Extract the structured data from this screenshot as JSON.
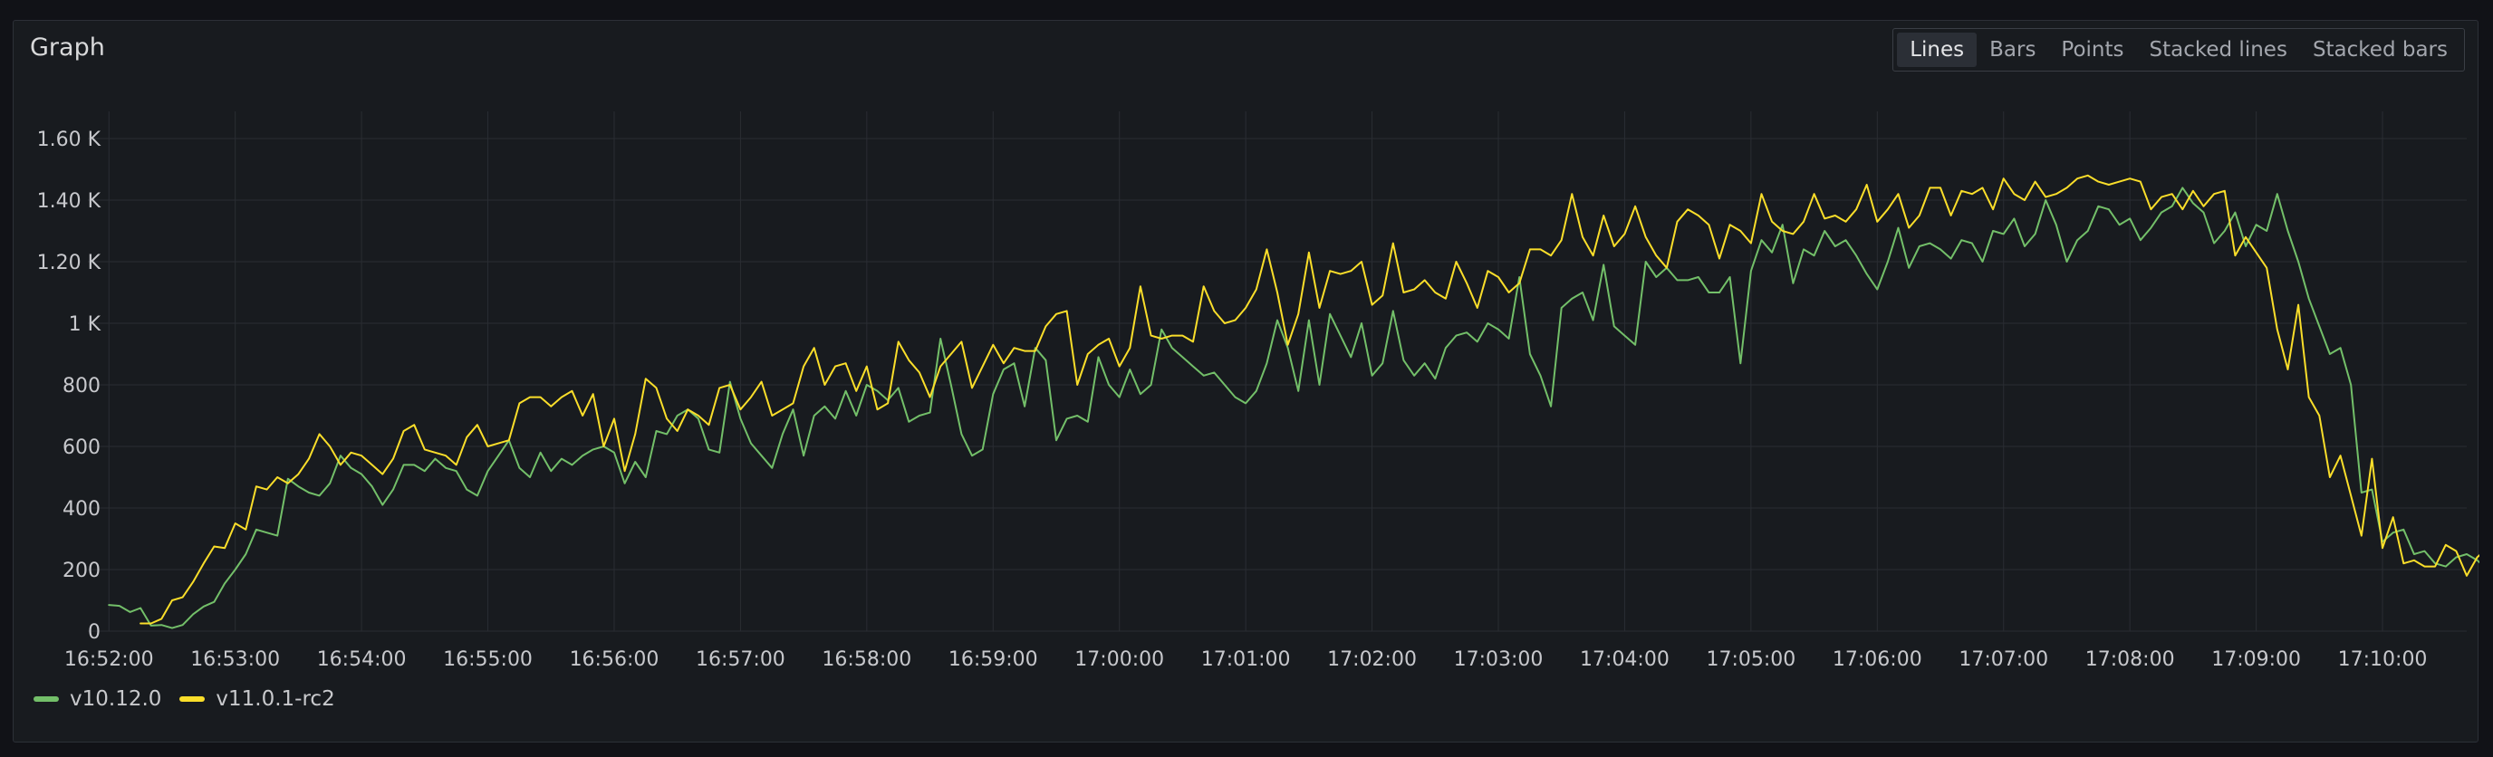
{
  "panel": {
    "title": "Graph"
  },
  "view_modes": {
    "options": [
      "Lines",
      "Bars",
      "Points",
      "Stacked lines",
      "Stacked bars"
    ],
    "selected": "Lines"
  },
  "chart_data": {
    "type": "line",
    "title": "Graph",
    "xlabel": "",
    "ylabel": "",
    "x_start": "16:52:00",
    "x_step_seconds": 5,
    "xlim_seconds": [
      0,
      1130
    ],
    "ylim": [
      0,
      1600
    ],
    "y_ticks": [
      0,
      200,
      400,
      600,
      800,
      1000,
      1200,
      1400,
      1600
    ],
    "y_tick_labels": [
      "0",
      "200",
      "400",
      "600",
      "800",
      "1 K",
      "1.20 K",
      "1.40 K",
      "1.60 K"
    ],
    "x_tick_labels": [
      "16:52:00",
      "16:53:00",
      "16:54:00",
      "16:55:00",
      "16:56:00",
      "16:57:00",
      "16:58:00",
      "16:59:00",
      "17:00:00",
      "17:01:00",
      "17:02:00",
      "17:03:00",
      "17:04:00",
      "17:05:00",
      "17:06:00",
      "17:07:00",
      "17:08:00",
      "17:09:00",
      "17:10:00"
    ],
    "grid": true,
    "legend_position": "bottom-left",
    "series": [
      {
        "name": "v10.12.0",
        "color": "#73bf69",
        "values": [
          85,
          82,
          62,
          75,
          18,
          20,
          10,
          20,
          55,
          80,
          95,
          155,
          200,
          250,
          330,
          320,
          310,
          495,
          470,
          450,
          440,
          480,
          570,
          530,
          510,
          470,
          410,
          460,
          540,
          540,
          520,
          560,
          530,
          520,
          460,
          440,
          520,
          570,
          620,
          530,
          500,
          580,
          520,
          560,
          540,
          570,
          590,
          600,
          580,
          480,
          550,
          500,
          650,
          640,
          700,
          720,
          690,
          590,
          580,
          810,
          690,
          610,
          570,
          530,
          640,
          720,
          570,
          700,
          730,
          690,
          780,
          700,
          800,
          780,
          750,
          790,
          680,
          700,
          710,
          950,
          800,
          640,
          570,
          590,
          770,
          850,
          870,
          730,
          920,
          880,
          620,
          690,
          700,
          680,
          890,
          800,
          760,
          850,
          770,
          800,
          980,
          920,
          890,
          860,
          830,
          840,
          800,
          760,
          740,
          780,
          870,
          1010,
          920,
          780,
          1010,
          800,
          1030,
          960,
          890,
          1000,
          830,
          870,
          1040,
          880,
          830,
          870,
          820,
          920,
          960,
          970,
          940,
          1000,
          980,
          950,
          1150,
          900,
          830,
          730,
          1050,
          1080,
          1100,
          1010,
          1190,
          990,
          960,
          930,
          1200,
          1150,
          1180,
          1140,
          1140,
          1150,
          1100,
          1100,
          1150,
          870,
          1170,
          1270,
          1230,
          1320,
          1130,
          1240,
          1220,
          1300,
          1250,
          1270,
          1220,
          1160,
          1110,
          1200,
          1310,
          1180,
          1250,
          1260,
          1240,
          1210,
          1270,
          1260,
          1200,
          1300,
          1290,
          1340,
          1250,
          1290,
          1400,
          1320,
          1200,
          1270,
          1300,
          1380,
          1370,
          1320,
          1340,
          1270,
          1310,
          1360,
          1380,
          1440,
          1390,
          1360,
          1260,
          1300,
          1360,
          1250,
          1320,
          1300,
          1420,
          1300,
          1200,
          1080,
          990,
          900,
          920,
          800,
          450,
          460,
          290,
          320,
          330,
          250,
          260,
          220,
          210,
          240,
          250,
          230,
          200,
          250,
          270,
          220,
          230,
          280,
          300,
          270
        ],
        "marker": "none",
        "style": "solid"
      },
      {
        "name": "v11.0.1-rc2",
        "color": "#fade2a",
        "values": [
          null,
          null,
          null,
          25,
          25,
          40,
          100,
          110,
          160,
          220,
          275,
          270,
          350,
          330,
          470,
          460,
          500,
          480,
          510,
          560,
          640,
          600,
          540,
          580,
          570,
          540,
          510,
          560,
          650,
          670,
          590,
          580,
          570,
          540,
          630,
          670,
          600,
          610,
          620,
          740,
          760,
          760,
          730,
          760,
          780,
          700,
          770,
          600,
          690,
          520,
          640,
          820,
          790,
          690,
          650,
          720,
          700,
          670,
          790,
          800,
          720,
          760,
          810,
          700,
          720,
          740,
          860,
          920,
          800,
          860,
          870,
          780,
          860,
          720,
          740,
          940,
          880,
          840,
          760,
          860,
          900,
          940,
          790,
          860,
          930,
          870,
          920,
          910,
          910,
          990,
          1030,
          1040,
          800,
          900,
          930,
          950,
          860,
          920,
          1120,
          960,
          950,
          960,
          960,
          940,
          1120,
          1040,
          1000,
          1010,
          1050,
          1110,
          1240,
          1100,
          930,
          1030,
          1230,
          1050,
          1170,
          1160,
          1170,
          1200,
          1060,
          1090,
          1260,
          1100,
          1110,
          1140,
          1100,
          1080,
          1200,
          1130,
          1050,
          1170,
          1150,
          1100,
          1130,
          1240,
          1240,
          1220,
          1270,
          1420,
          1280,
          1220,
          1350,
          1250,
          1290,
          1380,
          1280,
          1220,
          1180,
          1330,
          1370,
          1350,
          1320,
          1210,
          1320,
          1300,
          1260,
          1420,
          1330,
          1300,
          1290,
          1330,
          1420,
          1340,
          1350,
          1330,
          1370,
          1450,
          1330,
          1370,
          1420,
          1310,
          1350,
          1440,
          1440,
          1350,
          1430,
          1420,
          1440,
          1370,
          1470,
          1420,
          1400,
          1460,
          1410,
          1420,
          1440,
          1470,
          1480,
          1460,
          1450,
          1460,
          1470,
          1460,
          1370,
          1410,
          1420,
          1370,
          1430,
          1380,
          1420,
          1430,
          1220,
          1280,
          1230,
          1180,
          980,
          850,
          1060,
          760,
          700,
          500,
          570,
          440,
          310,
          560,
          270,
          370,
          220,
          230,
          210,
          210,
          280,
          260,
          180,
          240,
          270,
          220,
          220
        ],
        "marker": "none",
        "style": "solid"
      }
    ]
  }
}
